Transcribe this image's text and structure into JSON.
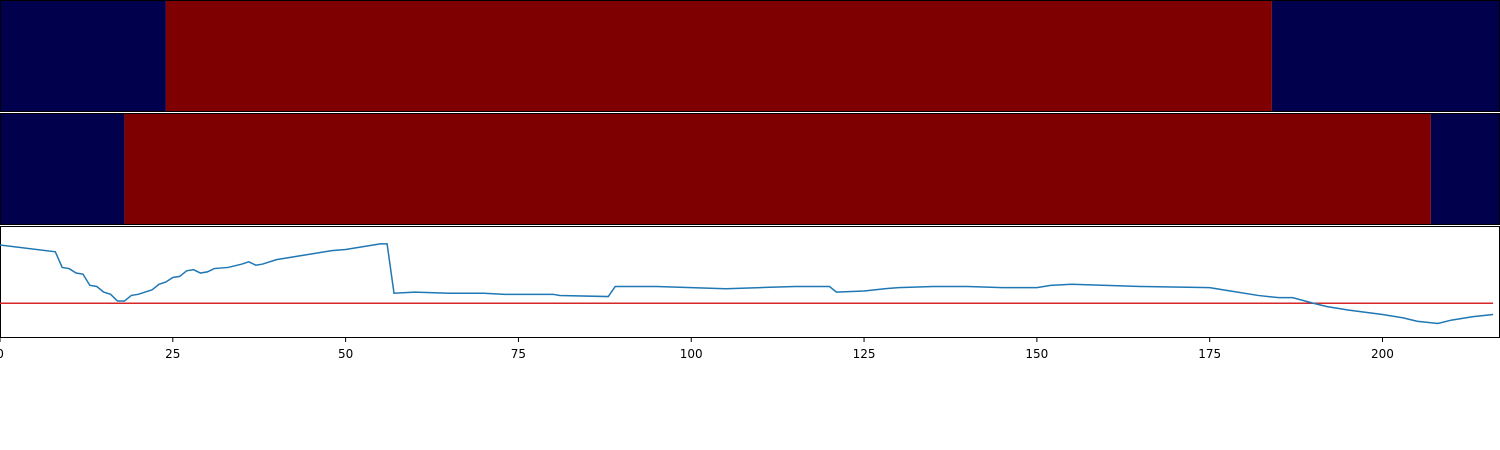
{
  "chart_data": [
    {
      "type": "heatmap",
      "xlim": [
        0,
        217
      ],
      "colors": [
        "#00004c",
        "#7f0000"
      ],
      "rows": [
        [
          {
            "start": 0,
            "end": 24,
            "value": 0
          },
          {
            "start": 24,
            "end": 184,
            "value": 1
          },
          {
            "start": 184,
            "end": 217,
            "value": 0
          }
        ],
        [
          {
            "start": 0,
            "end": 18,
            "value": 0
          },
          {
            "start": 18,
            "end": 207,
            "value": 1
          },
          {
            "start": 207,
            "end": 217,
            "value": 0
          }
        ]
      ]
    },
    {
      "type": "line",
      "xlim": [
        0,
        217
      ],
      "ylim": [
        0,
        1
      ],
      "xticks": [
        0,
        25,
        50,
        75,
        100,
        125,
        150,
        175,
        200
      ],
      "color": "#1f77b4",
      "x": [
        0,
        8,
        9,
        10,
        11,
        12,
        13,
        14,
        15,
        16,
        17,
        18,
        19,
        20,
        21,
        22,
        23,
        24,
        25,
        26,
        27,
        28,
        29,
        30,
        31,
        33,
        35,
        36,
        37,
        38,
        40,
        42,
        44,
        46,
        48,
        50,
        52,
        54,
        55,
        56,
        57,
        60,
        65,
        70,
        73,
        80,
        81,
        88,
        89,
        95,
        100,
        105,
        110,
        115,
        120,
        121,
        125,
        128,
        130,
        135,
        140,
        145,
        150,
        152,
        155,
        160,
        165,
        175,
        178,
        182,
        185,
        187,
        190,
        192,
        195,
        200,
        203,
        205,
        208,
        210,
        213,
        216
      ],
      "values": [
        0.83,
        0.77,
        0.63,
        0.62,
        0.58,
        0.57,
        0.47,
        0.46,
        0.41,
        0.39,
        0.33,
        0.33,
        0.38,
        0.39,
        0.41,
        0.43,
        0.48,
        0.5,
        0.54,
        0.55,
        0.6,
        0.61,
        0.58,
        0.59,
        0.62,
        0.63,
        0.66,
        0.68,
        0.65,
        0.66,
        0.7,
        0.72,
        0.74,
        0.76,
        0.78,
        0.79,
        0.81,
        0.83,
        0.84,
        0.84,
        0.4,
        0.41,
        0.4,
        0.4,
        0.39,
        0.39,
        0.38,
        0.37,
        0.46,
        0.46,
        0.45,
        0.44,
        0.45,
        0.46,
        0.46,
        0.41,
        0.42,
        0.44,
        0.45,
        0.46,
        0.46,
        0.45,
        0.45,
        0.47,
        0.48,
        0.47,
        0.46,
        0.45,
        0.42,
        0.38,
        0.36,
        0.36,
        0.31,
        0.28,
        0.25,
        0.21,
        0.18,
        0.15,
        0.13,
        0.16,
        0.19,
        0.21
      ],
      "hline": {
        "value": 0.31,
        "color": "#d62728"
      }
    }
  ]
}
